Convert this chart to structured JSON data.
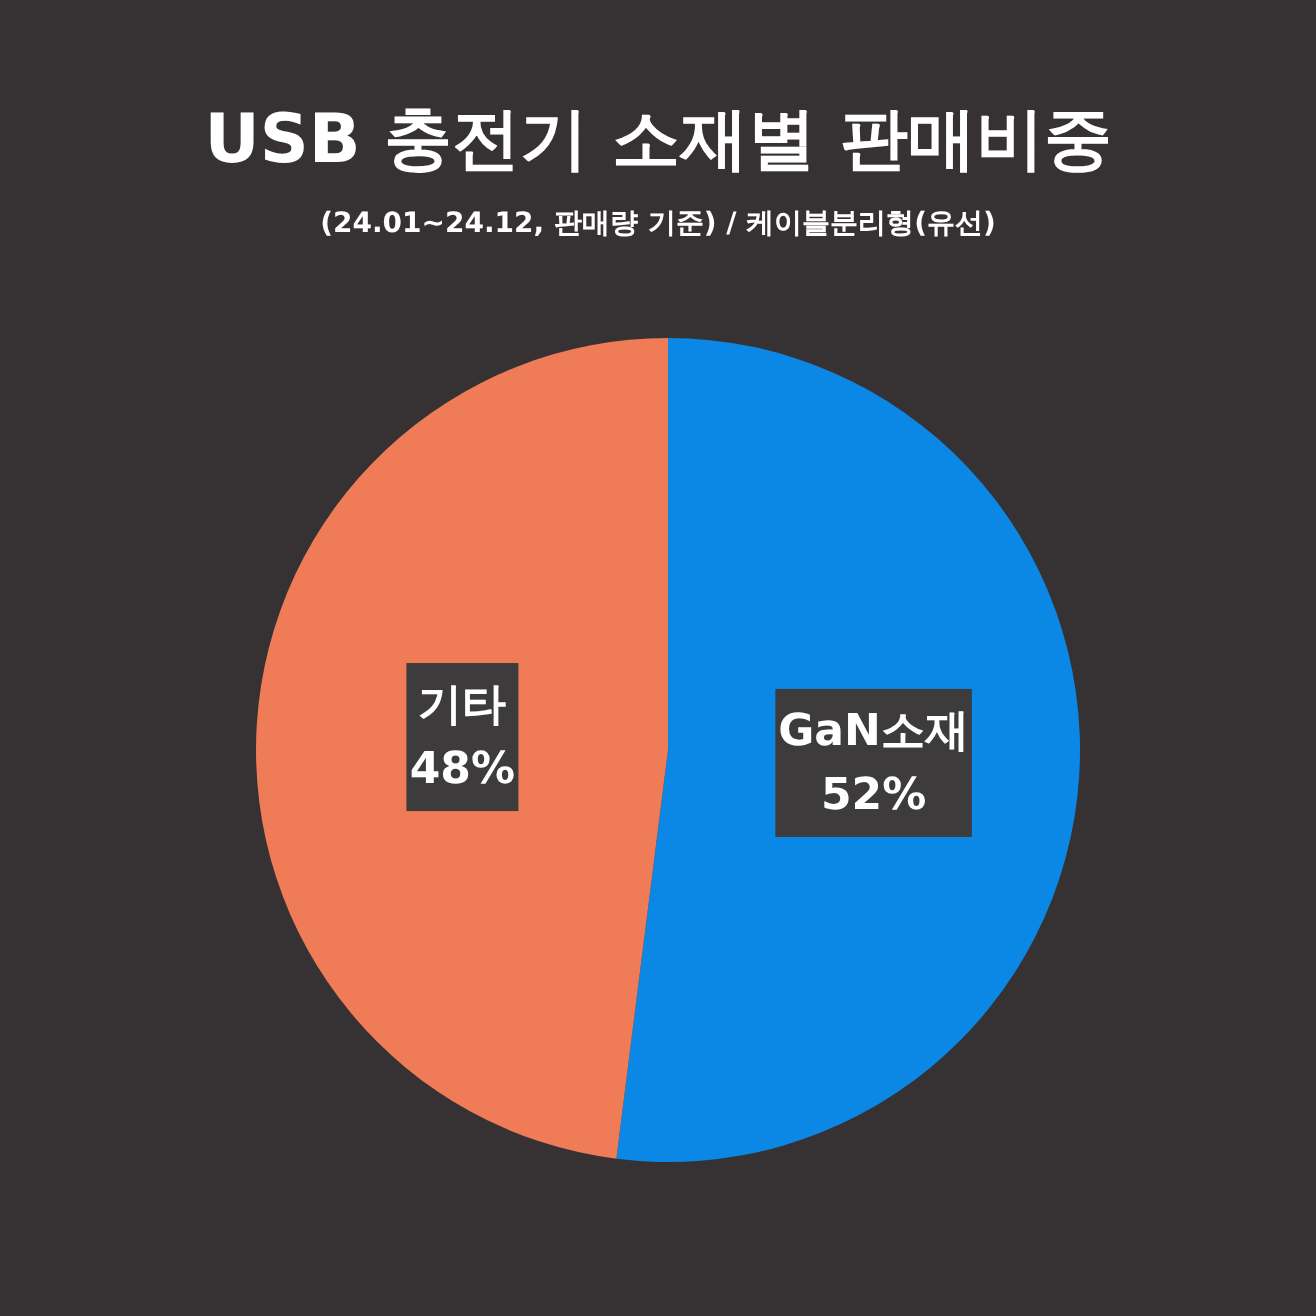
{
  "chart_data": {
    "type": "pie",
    "title": "USB 충전기 소재별 판매비중",
    "subtitle": "(24.01~24.12, 판매량 기준) / 케이블분리형(유선)",
    "categories": [
      "GaN소재",
      "기타"
    ],
    "values": [
      52,
      48
    ],
    "colors": [
      "#0b88e6",
      "#ef7b57"
    ],
    "value_labels": [
      "52%",
      "48%"
    ]
  }
}
